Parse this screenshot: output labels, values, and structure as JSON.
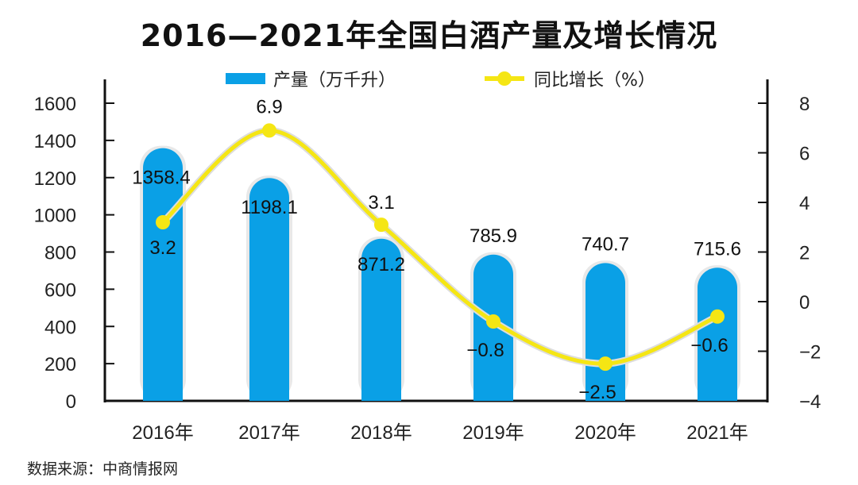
{
  "chart_data": {
    "type": "bar+line",
    "title": "2016—2021年全国白酒产量及增长情况",
    "categories": [
      "2016年",
      "2017年",
      "2018年",
      "2019年",
      "2020年",
      "2021年"
    ],
    "series": [
      {
        "name": "产量（万千升）",
        "type": "bar",
        "axis": "left",
        "color": "#0aa0e6",
        "values": [
          1358.4,
          1198.1,
          871.2,
          785.9,
          740.7,
          715.6
        ],
        "labels": [
          "1358.4",
          "1198.1",
          "871.2",
          "785.9",
          "740.7",
          "715.6"
        ]
      },
      {
        "name": "同比增长（%）",
        "type": "line",
        "axis": "right",
        "color": "#f5e614",
        "values": [
          3.2,
          6.9,
          3.1,
          -0.8,
          -2.5,
          -0.6
        ],
        "labels": [
          "3.2",
          "6.9",
          "3.1",
          "−0.8",
          "−2.5",
          "−0.6"
        ]
      }
    ],
    "y_left": {
      "ylim": [
        0,
        1600
      ],
      "ticks": [
        "0",
        "200",
        "400",
        "600",
        "800",
        "1000",
        "1200",
        "1400",
        "1600"
      ]
    },
    "y_right": {
      "ylim": [
        -4,
        8
      ],
      "ticks": [
        "−4",
        "−2",
        "0",
        "2",
        "4",
        "6",
        "8"
      ]
    },
    "legend": "top-center",
    "source": "数据来源：中商情报网"
  }
}
